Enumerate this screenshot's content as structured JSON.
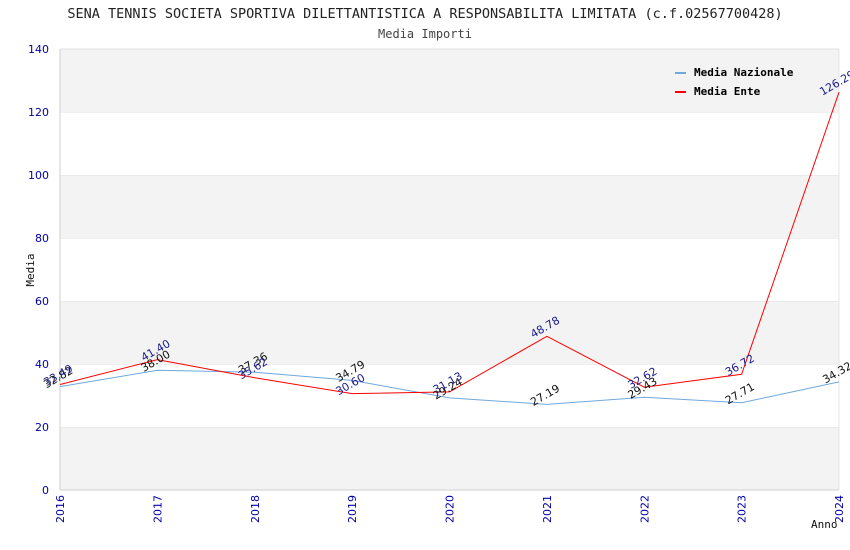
{
  "title": "SENA TENNIS SOCIETA SPORTIVA DILETTANTISTICA A RESPONSABILITA LIMITATA (c.f.02567700428)",
  "subtitle": "Media Importi",
  "chart_data": {
    "type": "line",
    "title": "SENA TENNIS SOCIETA SPORTIVA DILETTANTISTICA A RESPONSABILITA LIMITATA (c.f.02567700428)",
    "subtitle": "Media Importi",
    "xlabel": "Anno",
    "ylabel": "Media",
    "categories": [
      "2016",
      "2017",
      "2018",
      "2019",
      "2020",
      "2021",
      "2022",
      "2023",
      "2024"
    ],
    "ylim": [
      0,
      140
    ],
    "yticks": [
      0,
      20,
      40,
      60,
      80,
      100,
      120,
      140
    ],
    "grid": "horizontal alternating bands",
    "legend_position": "top-right",
    "series": [
      {
        "name": "Media Nazionale",
        "color": "#6fa8dc",
        "values": [
          32.82,
          38.0,
          37.36,
          34.79,
          29.24,
          27.19,
          29.43,
          27.71,
          34.32
        ],
        "labels": [
          "32.82",
          "38.00",
          "37.36",
          "34.79",
          "29.24",
          "27.19",
          "29.43",
          "27.71",
          "34.32"
        ]
      },
      {
        "name": "Media Ente",
        "color": "#ff0000",
        "values": [
          33.49,
          41.4,
          35.62,
          30.6,
          31.13,
          48.78,
          32.62,
          36.72,
          126.29
        ],
        "labels": [
          "33.49",
          "41.40",
          "35.62",
          "30.60",
          "31.13",
          "48.78",
          "32.62",
          "36.72",
          "126.29"
        ]
      }
    ]
  }
}
